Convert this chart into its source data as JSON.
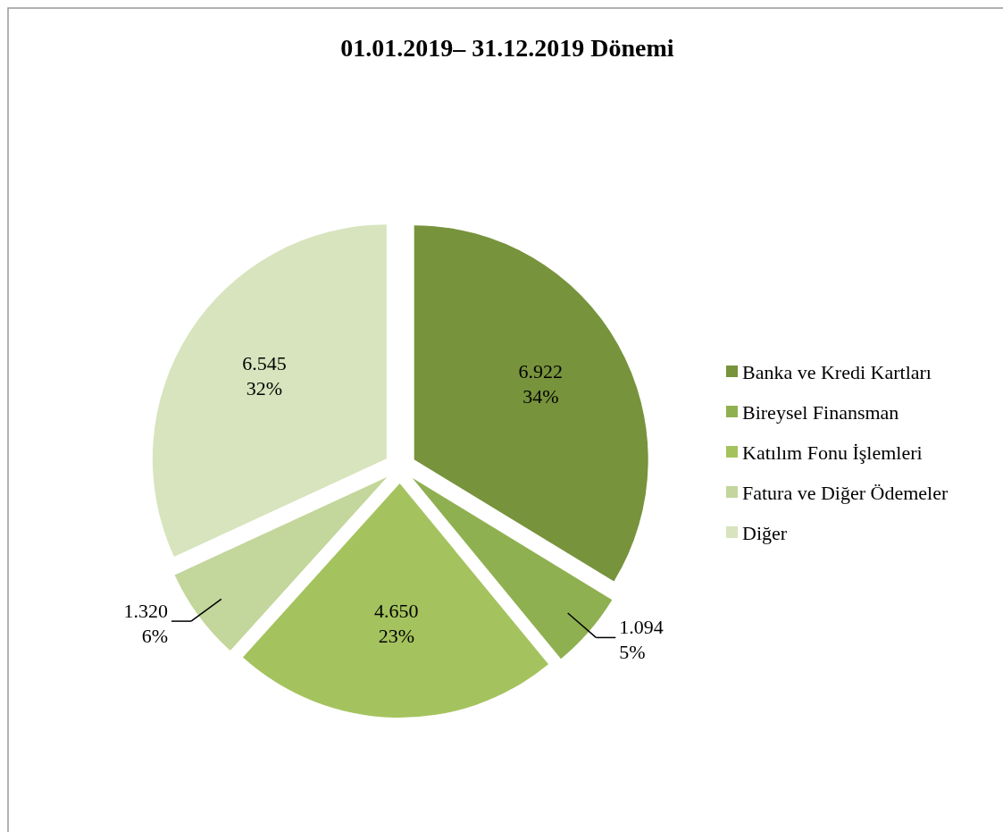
{
  "chart_data": {
    "type": "pie",
    "title": "01.01.2019– 31.12.2019 Dönemi",
    "categories": [
      "Banka ve Kredi Kartları",
      "Bireysel Finansman",
      "Katılım Fonu İşlemleri",
      "Fatura ve Diğer Ödemeler",
      "Diğer"
    ],
    "values": [
      6922,
      1094,
      4650,
      1320,
      6545
    ],
    "value_labels": [
      "6.922\n34%",
      "1.094\n5%",
      "4.650\n23%",
      "1.320\n6%",
      "6.545\n32%"
    ],
    "colors": [
      "#77933c",
      "#8fb050",
      "#a4c35e",
      "#c3d69b",
      "#d7e4bd"
    ],
    "legend": "right"
  }
}
